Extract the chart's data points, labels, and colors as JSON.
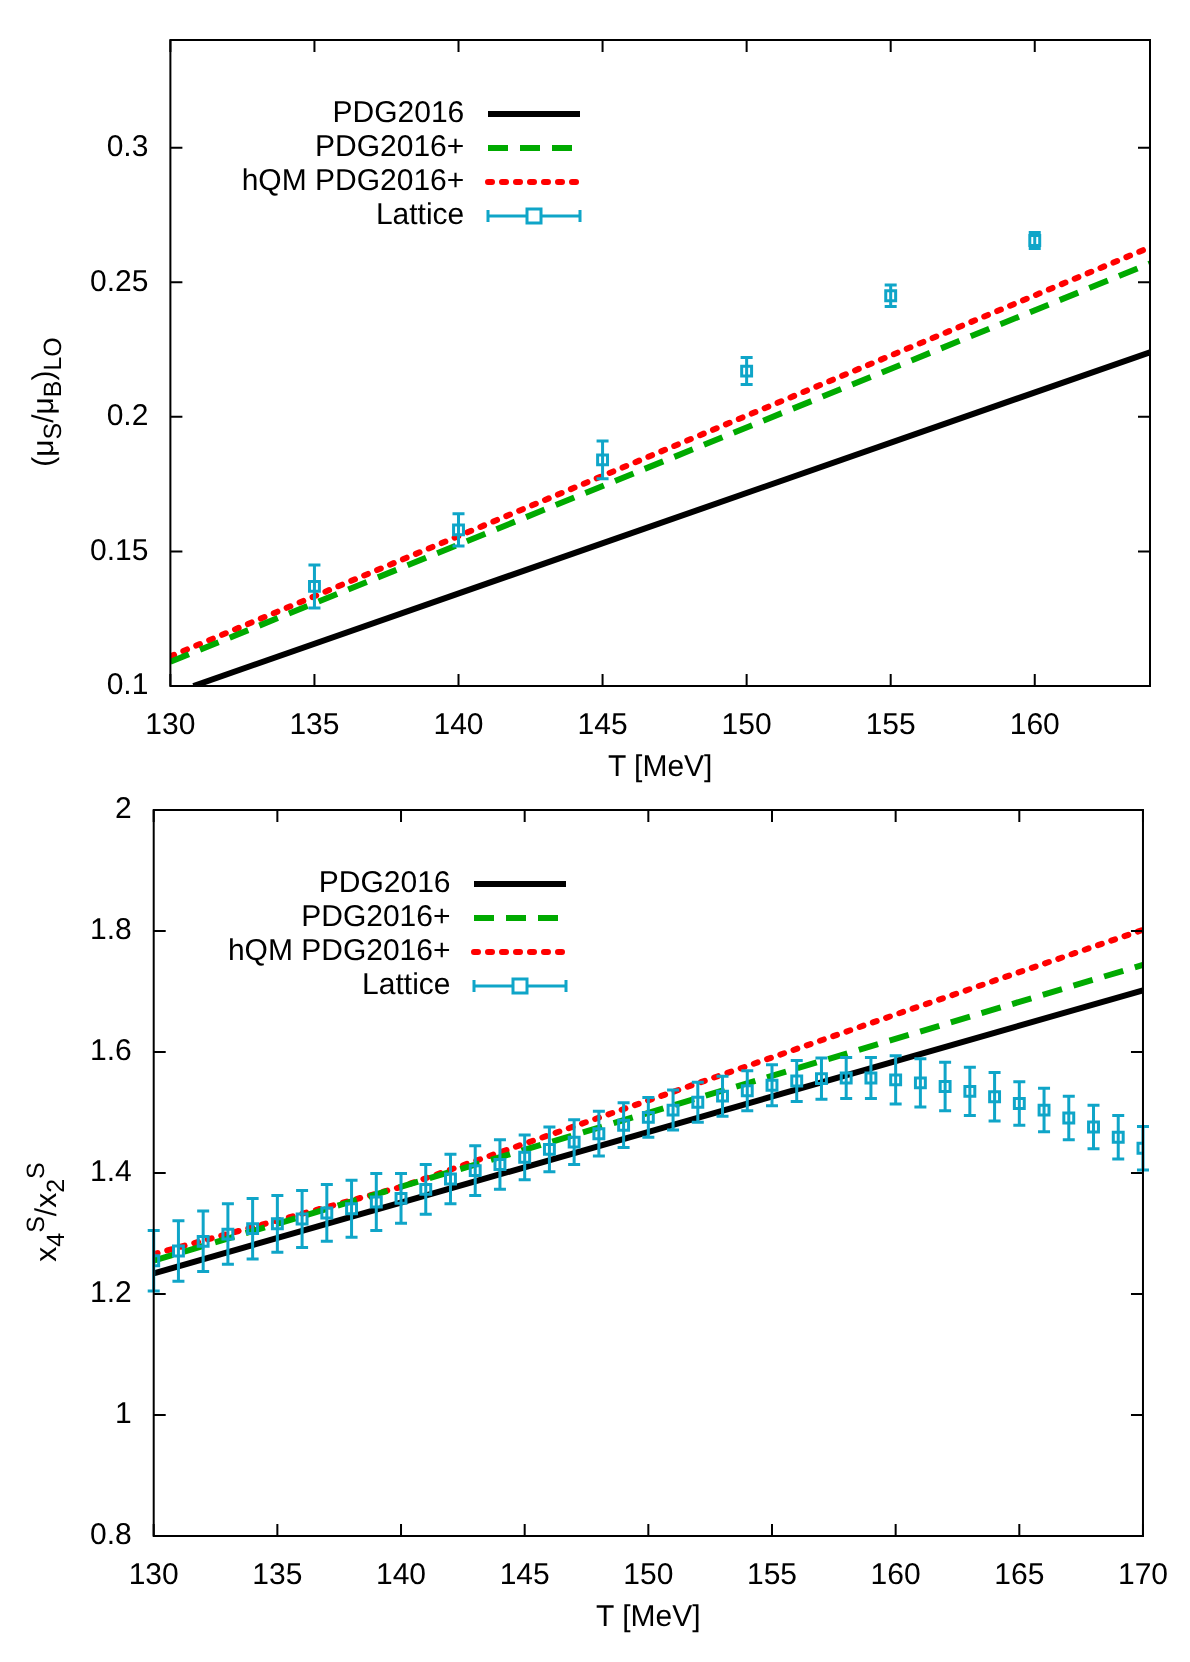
{
  "chart_data": [
    {
      "type": "line",
      "xlabel": "T [MeV]",
      "ylabel": "(μ$_{S}$/μ$_{B}$)$_{LO}$",
      "xlim": [
        130,
        164
      ],
      "ylim": [
        0.1,
        0.34
      ],
      "xticks": [
        130,
        135,
        140,
        145,
        150,
        155,
        160
      ],
      "yticks": [
        0.1,
        0.15,
        0.2,
        0.25,
        0.3
      ],
      "legend": "top left",
      "series": [
        {
          "name": "PDG2016",
          "type": "line",
          "color": "#000000",
          "line_style": "solid",
          "marker": "none",
          "x": [
            130.8,
            164
          ],
          "values": [
            0.1,
            0.224
          ]
        },
        {
          "name": "PDG2016+",
          "type": "line",
          "color": "#00aa00",
          "line_style": "dashed",
          "marker": "none",
          "x": [
            130,
            164
          ],
          "values": [
            0.109,
            0.257
          ]
        },
        {
          "name": "hQM PDG2016+",
          "type": "line",
          "color": "#ff0000",
          "line_style": "dotted",
          "marker": "none",
          "x": [
            130,
            164
          ],
          "values": [
            0.111,
            0.263
          ]
        },
        {
          "name": "Lattice",
          "type": "scatter",
          "color": "#0fa5c8",
          "marker": "square",
          "x": [
            135,
            140,
            145,
            150,
            155,
            160
          ],
          "values": [
            0.137,
            0.158,
            0.184,
            0.217,
            0.245,
            0.2655
          ],
          "errors": [
            0.008,
            0.006,
            0.007,
            0.005,
            0.004,
            0.003
          ]
        }
      ]
    },
    {
      "type": "line",
      "xlabel": "T [MeV]",
      "ylabel": "x$_{4}$$^{S}$/x$_{2}$$^{S}$",
      "xlim": [
        130,
        170
      ],
      "ylim": [
        0.8,
        2
      ],
      "xticks": [
        130,
        135,
        140,
        145,
        150,
        155,
        160,
        165,
        170
      ],
      "yticks": [
        0.8,
        1,
        1.2,
        1.4,
        1.6,
        1.8,
        2
      ],
      "legend": "top left",
      "series": [
        {
          "name": "PDG2016",
          "type": "line",
          "color": "#000000",
          "line_style": "solid",
          "marker": "none",
          "x": [
            130,
            170
          ],
          "values": [
            1.234,
            1.702
          ]
        },
        {
          "name": "PDG2016+",
          "type": "line",
          "color": "#00aa00",
          "line_style": "dashed",
          "marker": "none",
          "x": [
            130,
            170
          ],
          "values": [
            1.255,
            1.744
          ]
        },
        {
          "name": "hQM PDG2016+",
          "type": "line",
          "color": "#ff0000",
          "line_style": "dotted",
          "marker": "none",
          "x": [
            130,
            140,
            150,
            160,
            170
          ],
          "values": [
            1.266,
            1.377,
            1.52,
            1.662,
            1.802
          ]
        },
        {
          "name": "Lattice",
          "type": "scatter",
          "color": "#0fa5c8",
          "marker": "square",
          "x": [
            130,
            131,
            132,
            133,
            134,
            135,
            136,
            137,
            138,
            139,
            140,
            141,
            142,
            143,
            144,
            145,
            146,
            147,
            148,
            149,
            150,
            151,
            152,
            153,
            154,
            155,
            156,
            157,
            158,
            159,
            160,
            161,
            162,
            163,
            164,
            165,
            166,
            167,
            168,
            169,
            170
          ],
          "values": [
            1.255,
            1.271,
            1.287,
            1.299,
            1.308,
            1.316,
            1.324,
            1.334,
            1.341,
            1.352,
            1.358,
            1.373,
            1.39,
            1.404,
            1.414,
            1.426,
            1.439,
            1.451,
            1.465,
            1.479,
            1.492,
            1.504,
            1.517,
            1.527,
            1.536,
            1.545,
            1.552,
            1.556,
            1.557,
            1.557,
            1.554,
            1.549,
            1.543,
            1.535,
            1.526,
            1.515,
            1.504,
            1.491,
            1.476,
            1.459,
            1.441
          ],
          "errors": [
            0.05,
            0.05,
            0.05,
            0.05,
            0.05,
            0.047,
            0.047,
            0.047,
            0.047,
            0.047,
            0.041,
            0.041,
            0.041,
            0.041,
            0.041,
            0.037,
            0.037,
            0.037,
            0.037,
            0.037,
            0.033,
            0.033,
            0.033,
            0.033,
            0.033,
            0.034,
            0.034,
            0.034,
            0.034,
            0.034,
            0.04,
            0.04,
            0.04,
            0.04,
            0.04,
            0.036,
            0.036,
            0.036,
            0.036,
            0.036,
            0.036
          ]
        }
      ]
    }
  ]
}
